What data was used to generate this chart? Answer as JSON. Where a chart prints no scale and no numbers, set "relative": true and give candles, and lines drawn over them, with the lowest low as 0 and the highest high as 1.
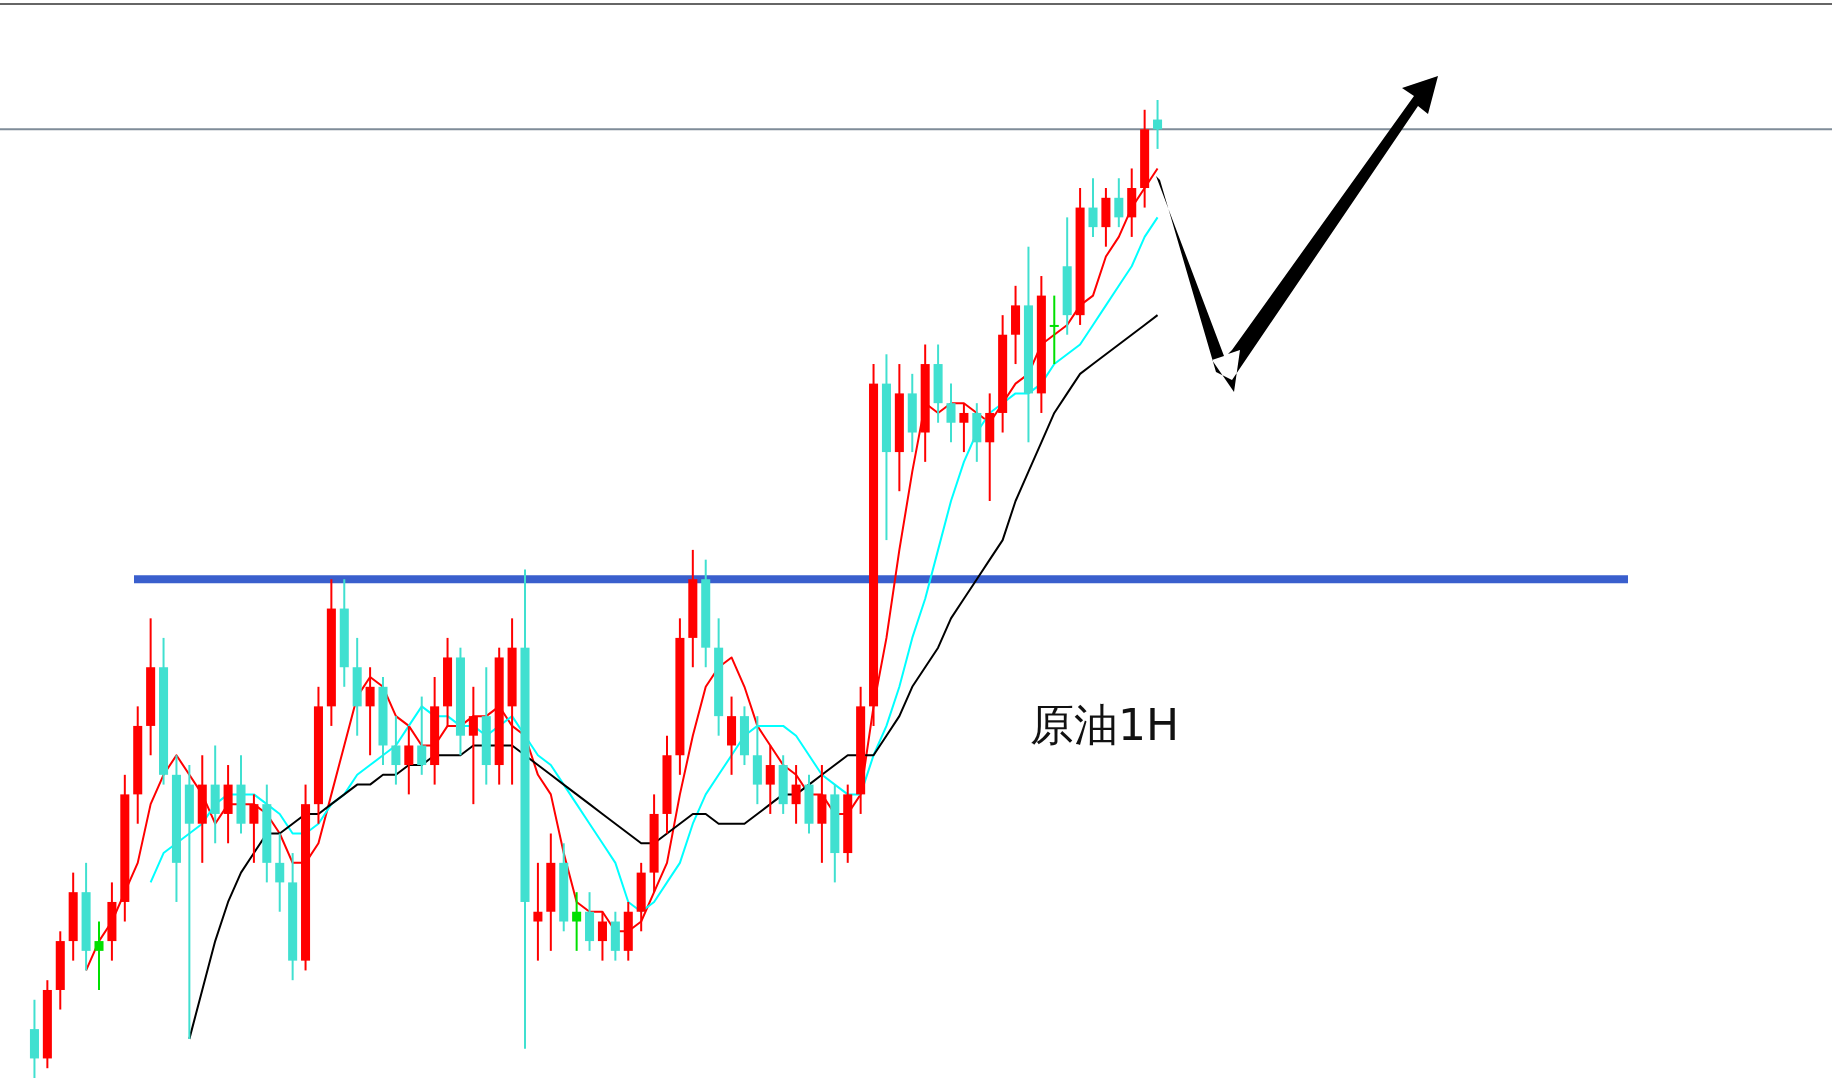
{
  "chart_data": {
    "type": "candlestick",
    "relative": true,
    "categories": [
      null,
      null,
      null,
      null,
      null,
      null,
      null,
      null,
      null,
      null,
      null,
      null,
      null,
      null,
      null,
      null,
      null,
      null,
      null,
      null,
      null,
      null,
      null,
      null,
      null,
      null,
      null,
      null,
      null,
      null,
      null,
      null,
      null,
      null,
      null,
      null,
      null,
      null,
      null,
      null,
      null,
      null,
      null,
      null,
      null,
      null,
      null,
      null,
      null,
      null,
      null,
      null,
      null,
      null,
      null,
      null,
      null,
      null,
      null,
      null,
      null,
      null,
      null,
      null,
      null,
      null,
      null,
      null,
      null,
      null,
      null,
      null,
      null,
      null,
      null,
      null,
      null,
      null,
      null,
      null,
      null,
      null,
      null,
      null,
      null,
      null,
      null,
      null
    ],
    "ohlc": [
      [
        0.05,
        0.08,
        0.0,
        0.02
      ],
      [
        0.02,
        0.1,
        0.01,
        0.09
      ],
      [
        0.09,
        0.15,
        0.07,
        0.14
      ],
      [
        0.14,
        0.21,
        0.12,
        0.19
      ],
      [
        0.19,
        0.22,
        0.11,
        0.13
      ],
      [
        0.13,
        0.16,
        0.09,
        0.14
      ],
      [
        0.14,
        0.2,
        0.12,
        0.18
      ],
      [
        0.18,
        0.31,
        0.16,
        0.29
      ],
      [
        0.29,
        0.38,
        0.26,
        0.36
      ],
      [
        0.36,
        0.47,
        0.33,
        0.42
      ],
      [
        0.42,
        0.45,
        0.3,
        0.31
      ],
      [
        0.31,
        0.33,
        0.18,
        0.22
      ],
      [
        0.3,
        0.32,
        0.04,
        0.26
      ],
      [
        0.26,
        0.33,
        0.22,
        0.3
      ],
      [
        0.3,
        0.34,
        0.24,
        0.27
      ],
      [
        0.27,
        0.32,
        0.24,
        0.3
      ],
      [
        0.3,
        0.33,
        0.25,
        0.26
      ],
      [
        0.26,
        0.29,
        0.22,
        0.28
      ],
      [
        0.28,
        0.3,
        0.2,
        0.22
      ],
      [
        0.22,
        0.25,
        0.17,
        0.2
      ],
      [
        0.2,
        0.23,
        0.1,
        0.12
      ],
      [
        0.12,
        0.3,
        0.11,
        0.28
      ],
      [
        0.28,
        0.4,
        0.26,
        0.38
      ],
      [
        0.38,
        0.51,
        0.36,
        0.48
      ],
      [
        0.48,
        0.51,
        0.4,
        0.42
      ],
      [
        0.42,
        0.45,
        0.35,
        0.38
      ],
      [
        0.38,
        0.42,
        0.33,
        0.4
      ],
      [
        0.4,
        0.41,
        0.32,
        0.34
      ],
      [
        0.34,
        0.37,
        0.3,
        0.32
      ],
      [
        0.32,
        0.36,
        0.29,
        0.34
      ],
      [
        0.34,
        0.39,
        0.31,
        0.32
      ],
      [
        0.32,
        0.41,
        0.3,
        0.38
      ],
      [
        0.38,
        0.45,
        0.36,
        0.43
      ],
      [
        0.43,
        0.44,
        0.33,
        0.35
      ],
      [
        0.35,
        0.4,
        0.28,
        0.37
      ],
      [
        0.37,
        0.42,
        0.3,
        0.32
      ],
      [
        0.32,
        0.44,
        0.3,
        0.43
      ],
      [
        0.38,
        0.47,
        0.3,
        0.44
      ],
      [
        0.44,
        0.52,
        0.03,
        0.18
      ],
      [
        0.16,
        0.22,
        0.12,
        0.17
      ],
      [
        0.17,
        0.25,
        0.13,
        0.22
      ],
      [
        0.22,
        0.24,
        0.15,
        0.16
      ],
      [
        0.16,
        0.19,
        0.13,
        0.17
      ],
      [
        0.17,
        0.19,
        0.13,
        0.14
      ],
      [
        0.14,
        0.17,
        0.12,
        0.16
      ],
      [
        0.16,
        0.17,
        0.12,
        0.13
      ],
      [
        0.13,
        0.18,
        0.12,
        0.17
      ],
      [
        0.17,
        0.22,
        0.15,
        0.21
      ],
      [
        0.21,
        0.29,
        0.19,
        0.27
      ],
      [
        0.27,
        0.35,
        0.25,
        0.33
      ],
      [
        0.33,
        0.47,
        0.31,
        0.45
      ],
      [
        0.45,
        0.54,
        0.42,
        0.51
      ],
      [
        0.51,
        0.53,
        0.42,
        0.44
      ],
      [
        0.44,
        0.47,
        0.35,
        0.37
      ],
      [
        0.34,
        0.39,
        0.31,
        0.37
      ],
      [
        0.37,
        0.38,
        0.32,
        0.33
      ],
      [
        0.33,
        0.37,
        0.28,
        0.3
      ],
      [
        0.3,
        0.34,
        0.27,
        0.32
      ],
      [
        0.32,
        0.33,
        0.27,
        0.28
      ],
      [
        0.28,
        0.32,
        0.26,
        0.3
      ],
      [
        0.3,
        0.31,
        0.25,
        0.26
      ],
      [
        0.26,
        0.32,
        0.22,
        0.29
      ],
      [
        0.29,
        0.3,
        0.2,
        0.23
      ],
      [
        0.23,
        0.3,
        0.22,
        0.29
      ],
      [
        0.29,
        0.4,
        0.27,
        0.38
      ],
      [
        0.38,
        0.73,
        0.36,
        0.71
      ],
      [
        0.71,
        0.74,
        0.55,
        0.64
      ],
      [
        0.64,
        0.73,
        0.6,
        0.7
      ],
      [
        0.7,
        0.72,
        0.64,
        0.66
      ],
      [
        0.66,
        0.75,
        0.63,
        0.73
      ],
      [
        0.73,
        0.75,
        0.67,
        0.69
      ],
      [
        0.69,
        0.71,
        0.65,
        0.67
      ],
      [
        0.67,
        0.69,
        0.64,
        0.68
      ],
      [
        0.68,
        0.69,
        0.63,
        0.65
      ],
      [
        0.65,
        0.7,
        0.59,
        0.68
      ],
      [
        0.68,
        0.78,
        0.66,
        0.76
      ],
      [
        0.76,
        0.81,
        0.73,
        0.79
      ],
      [
        0.79,
        0.85,
        0.65,
        0.7
      ],
      [
        0.7,
        0.82,
        0.68,
        0.8
      ],
      [
        0.77,
        0.8,
        0.73,
        0.77
      ],
      [
        0.83,
        0.88,
        0.76,
        0.78
      ],
      [
        0.78,
        0.91,
        0.77,
        0.89
      ],
      [
        0.89,
        0.92,
        0.86,
        0.87
      ],
      [
        0.87,
        0.91,
        0.85,
        0.9
      ],
      [
        0.9,
        0.92,
        0.87,
        0.88
      ],
      [
        0.88,
        0.93,
        0.86,
        0.91
      ],
      [
        0.91,
        0.99,
        0.89,
        0.97
      ],
      [
        0.98,
        1.0,
        0.95,
        0.97
      ]
    ],
    "colors": [
      "#40e0d0",
      "#ff0000",
      "#ff0000",
      "#ff0000",
      "#40e0d0",
      "#00e000",
      "#ff0000",
      "#ff0000",
      "#ff0000",
      "#ff0000",
      "#40e0d0",
      "#40e0d0",
      "#40e0d0",
      "#ff0000",
      "#40e0d0",
      "#ff0000",
      "#40e0d0",
      "#ff0000",
      "#40e0d0",
      "#40e0d0",
      "#40e0d0",
      "#ff0000",
      "#ff0000",
      "#ff0000",
      "#40e0d0",
      "#40e0d0",
      "#ff0000",
      "#40e0d0",
      "#40e0d0",
      "#ff0000",
      "#40e0d0",
      "#ff0000",
      "#ff0000",
      "#40e0d0",
      "#ff0000",
      "#40e0d0",
      "#ff0000",
      "#ff0000",
      "#40e0d0",
      "#ff0000",
      "#ff0000",
      "#40e0d0",
      "#00e000",
      "#40e0d0",
      "#ff0000",
      "#40e0d0",
      "#ff0000",
      "#ff0000",
      "#ff0000",
      "#ff0000",
      "#ff0000",
      "#ff0000",
      "#40e0d0",
      "#40e0d0",
      "#ff0000",
      "#40e0d0",
      "#40e0d0",
      "#ff0000",
      "#40e0d0",
      "#ff0000",
      "#40e0d0",
      "#ff0000",
      "#40e0d0",
      "#ff0000",
      "#ff0000",
      "#ff0000",
      "#40e0d0",
      "#ff0000",
      "#40e0d0",
      "#ff0000",
      "#40e0d0",
      "#40e0d0",
      "#ff0000",
      "#40e0d0",
      "#ff0000",
      "#ff0000",
      "#ff0000",
      "#40e0d0",
      "#ff0000",
      "#00e000",
      "#40e0d0",
      "#ff0000",
      "#40e0d0",
      "#ff0000",
      "#40e0d0",
      "#ff0000",
      "#ff0000",
      "#40e0d0"
    ],
    "series": [
      {
        "type": "line",
        "color": "#ff0000",
        "values": [
          null,
          null,
          null,
          null,
          0.11,
          0.14,
          0.16,
          0.19,
          0.22,
          0.28,
          0.31,
          0.33,
          0.31,
          0.29,
          0.26,
          0.28,
          0.28,
          0.28,
          0.27,
          0.25,
          0.22,
          0.22,
          0.24,
          0.29,
          0.34,
          0.39,
          0.41,
          0.4,
          0.37,
          0.36,
          0.34,
          0.34,
          0.36,
          0.36,
          0.37,
          0.37,
          0.38,
          0.36,
          0.35,
          0.31,
          0.29,
          0.23,
          0.18,
          0.17,
          0.17,
          0.15,
          0.15,
          0.16,
          0.19,
          0.22,
          0.29,
          0.35,
          0.4,
          0.42,
          0.43,
          0.4,
          0.36,
          0.34,
          0.32,
          0.31,
          0.29,
          0.29,
          0.27,
          0.27,
          0.29,
          0.38,
          0.45,
          0.54,
          0.62,
          0.69,
          0.68,
          0.69,
          0.69,
          0.68,
          0.67,
          0.69,
          0.71,
          0.72,
          0.75,
          0.76,
          0.77,
          0.79,
          0.8,
          0.84,
          0.86,
          0.89,
          0.91,
          0.93
        ]
      },
      {
        "type": "line",
        "color": "#00ffff",
        "values": [
          null,
          null,
          null,
          null,
          null,
          null,
          null,
          null,
          null,
          0.2,
          0.23,
          0.24,
          0.25,
          0.26,
          0.28,
          0.29,
          0.29,
          0.29,
          0.28,
          0.27,
          0.25,
          0.25,
          0.26,
          0.28,
          0.29,
          0.31,
          0.32,
          0.33,
          0.34,
          0.36,
          0.38,
          0.37,
          0.37,
          0.36,
          0.36,
          0.35,
          0.36,
          0.37,
          0.35,
          0.33,
          0.32,
          0.3,
          0.28,
          0.26,
          0.24,
          0.22,
          0.18,
          0.17,
          0.18,
          0.2,
          0.22,
          0.26,
          0.29,
          0.31,
          0.33,
          0.35,
          0.36,
          0.36,
          0.36,
          0.35,
          0.33,
          0.31,
          0.3,
          0.29,
          0.29,
          0.33,
          0.36,
          0.4,
          0.45,
          0.49,
          0.54,
          0.59,
          0.63,
          0.66,
          0.68,
          0.69,
          0.7,
          0.7,
          0.71,
          0.73,
          0.74,
          0.75,
          0.77,
          0.79,
          0.81,
          0.83,
          0.86,
          0.88
        ]
      },
      {
        "type": "line",
        "color": "#000000",
        "values": [
          null,
          null,
          null,
          null,
          null,
          null,
          null,
          null,
          null,
          null,
          null,
          null,
          0.04,
          0.09,
          0.14,
          0.18,
          0.21,
          0.23,
          0.25,
          0.25,
          0.26,
          0.27,
          0.27,
          0.28,
          0.29,
          0.3,
          0.3,
          0.31,
          0.31,
          0.32,
          0.32,
          0.33,
          0.33,
          0.33,
          0.34,
          0.34,
          0.34,
          0.34,
          0.33,
          0.32,
          0.31,
          0.3,
          0.29,
          0.28,
          0.27,
          0.26,
          0.25,
          0.24,
          0.24,
          0.25,
          0.26,
          0.27,
          0.27,
          0.26,
          0.26,
          0.26,
          0.27,
          0.28,
          0.29,
          0.29,
          0.3,
          0.31,
          0.32,
          0.33,
          0.33,
          0.33,
          0.35,
          0.37,
          0.4,
          0.42,
          0.44,
          0.47,
          0.49,
          0.51,
          0.53,
          0.55,
          0.59,
          0.62,
          0.65,
          0.68,
          0.7,
          0.72,
          0.73,
          0.74,
          0.75,
          0.76,
          0.77,
          0.78
        ]
      }
    ],
    "ref_lines": [
      {
        "axis": "y",
        "value": 0.51,
        "color": "#3a5fcd"
      },
      {
        "axis": "y",
        "value": 0.97,
        "color": "#7f8c99"
      }
    ],
    "annotations": [
      "原油1H"
    ]
  }
}
